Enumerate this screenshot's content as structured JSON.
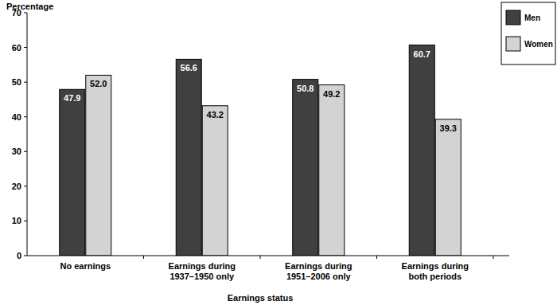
{
  "chart_data": {
    "type": "bar",
    "y_label": "Percentage",
    "x_label": "Earnings status",
    "categories": [
      "No earnings",
      "Earnings during\n1937–1950 only",
      "Earnings during\n1951–2006 only",
      "Earnings during\nboth periods"
    ],
    "series": [
      {
        "name": "Men",
        "color": "#404040",
        "values": [
          47.9,
          56.6,
          50.8,
          60.7
        ],
        "value_labels": [
          "47.9",
          "56.6",
          "50.8",
          "60.7"
        ]
      },
      {
        "name": "Women",
        "color": "#d3d3d3",
        "values": [
          52.0,
          43.2,
          49.2,
          39.3
        ],
        "value_labels": [
          "52.0",
          "43.2",
          "49.2",
          "39.3"
        ]
      }
    ],
    "ylim": [
      0,
      70
    ],
    "yticks": [
      0,
      10,
      20,
      30,
      40,
      50,
      60,
      70
    ],
    "grid": false,
    "legend": "top-right",
    "data_labels": true
  }
}
